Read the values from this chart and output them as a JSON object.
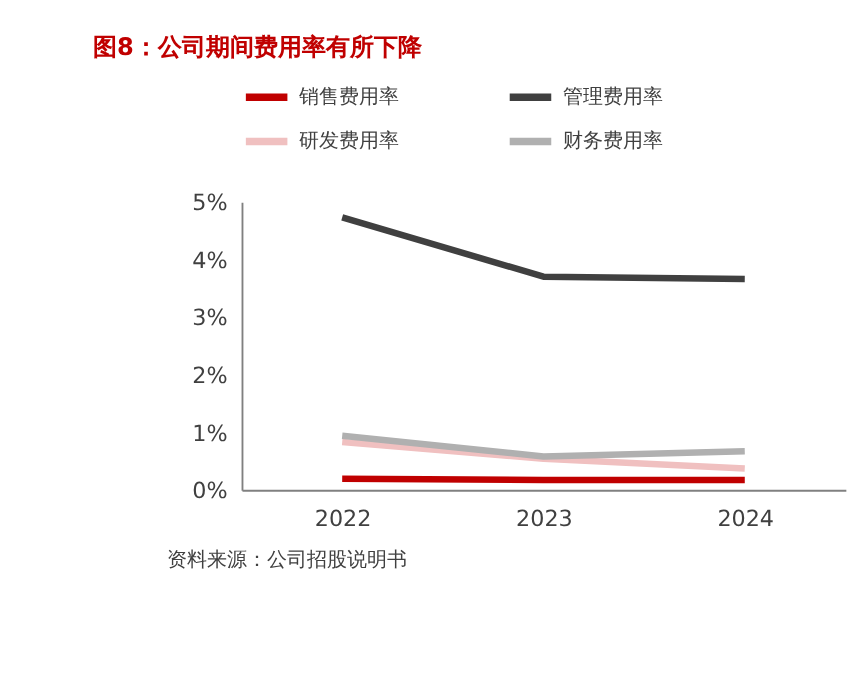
{
  "chart_data": {
    "type": "line",
    "title": "图8：公司期间费用率有所下降",
    "categories": [
      "2022",
      "2023",
      "2024"
    ],
    "series": [
      {
        "name": "销售费用率",
        "color": "#c00000",
        "values": [
          0.19,
          0.17,
          0.17
        ]
      },
      {
        "name": "管理费用率",
        "color": "#404040",
        "values": [
          4.73,
          3.7,
          3.66
        ]
      },
      {
        "name": "研发费用率",
        "color": "#f0c0c0",
        "values": [
          0.83,
          0.54,
          0.37
        ]
      },
      {
        "name": "财务费用率",
        "color": "#b0b0b0",
        "values": [
          0.94,
          0.58,
          0.67
        ]
      }
    ],
    "ylim": [
      0,
      5
    ],
    "yticks": [
      {
        "value": 0,
        "label": "0%"
      },
      {
        "value": 1,
        "label": "1%"
      },
      {
        "value": 2,
        "label": "2%"
      },
      {
        "value": 3,
        "label": "3%"
      },
      {
        "value": 4,
        "label": "4%"
      },
      {
        "value": 5,
        "label": "5%"
      }
    ],
    "grid": false,
    "legend": "top",
    "marker": "none",
    "line_style": "solid",
    "annotations": [
      "资料来源：公司招股说明书"
    ]
  }
}
